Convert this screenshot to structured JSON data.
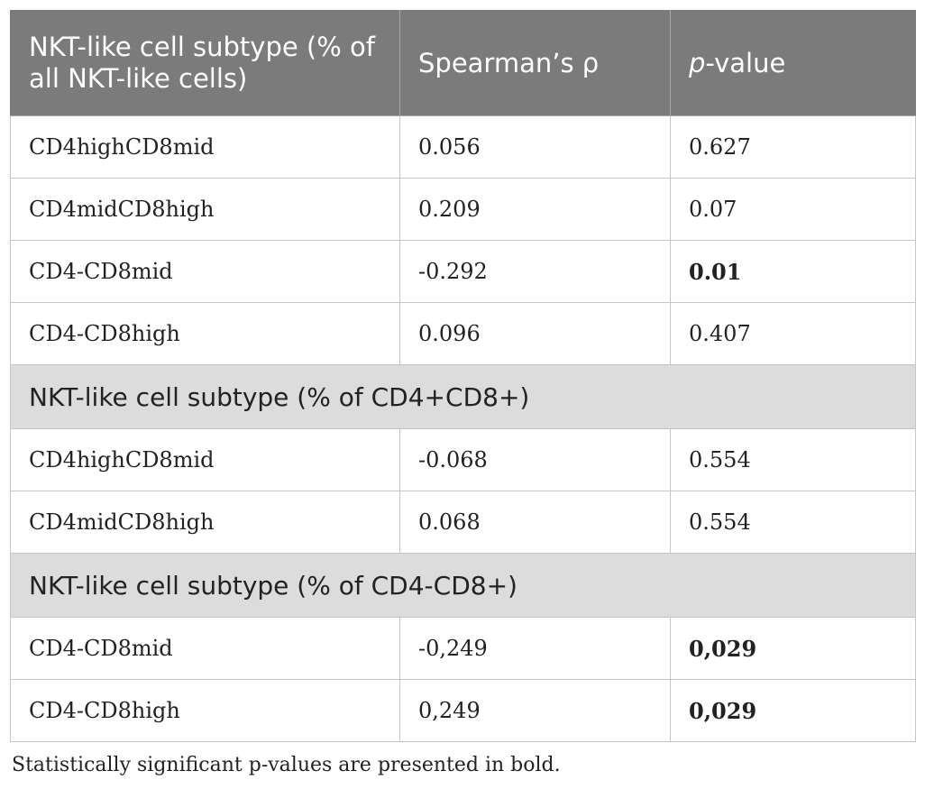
{
  "header": {
    "col1": "NKT-like cell subtype (% of all NKT-like cells)",
    "col2": "Spearman’s ρ",
    "col3_italic": "p",
    "col3_rest": "-value"
  },
  "groups": [
    {
      "rows": [
        {
          "subtype": "CD4highCD8mid",
          "rho": "0.056",
          "p": "0.627",
          "bold": false
        },
        {
          "subtype": "CD4midCD8high",
          "rho": "0.209",
          "p": "0.07",
          "bold": false
        },
        {
          "subtype": "CD4-CD8mid",
          "rho": "-0.292",
          "p": "0.01",
          "bold": true
        },
        {
          "subtype": "CD4-CD8high",
          "rho": "0.096",
          "p": "0.407",
          "bold": false
        }
      ]
    },
    {
      "title": "NKT-like cell subtype (% of CD4+CD8+)",
      "rows": [
        {
          "subtype": "CD4highCD8mid",
          "rho": "-0.068",
          "p": "0.554",
          "bold": false
        },
        {
          "subtype": "CD4midCD8high",
          "rho": "0.068",
          "p": "0.554",
          "bold": false
        }
      ]
    },
    {
      "title": "NKT-like cell subtype (% of CD4-CD8+)",
      "rows": [
        {
          "subtype": "CD4-CD8mid",
          "rho": "-0,249",
          "p": "0,029",
          "bold": true
        },
        {
          "subtype": "CD4-CD8high",
          "rho": "0,249",
          "p": "0,029",
          "bold": true
        }
      ]
    }
  ],
  "footnote": "Statistically significant p-values are presented in bold."
}
